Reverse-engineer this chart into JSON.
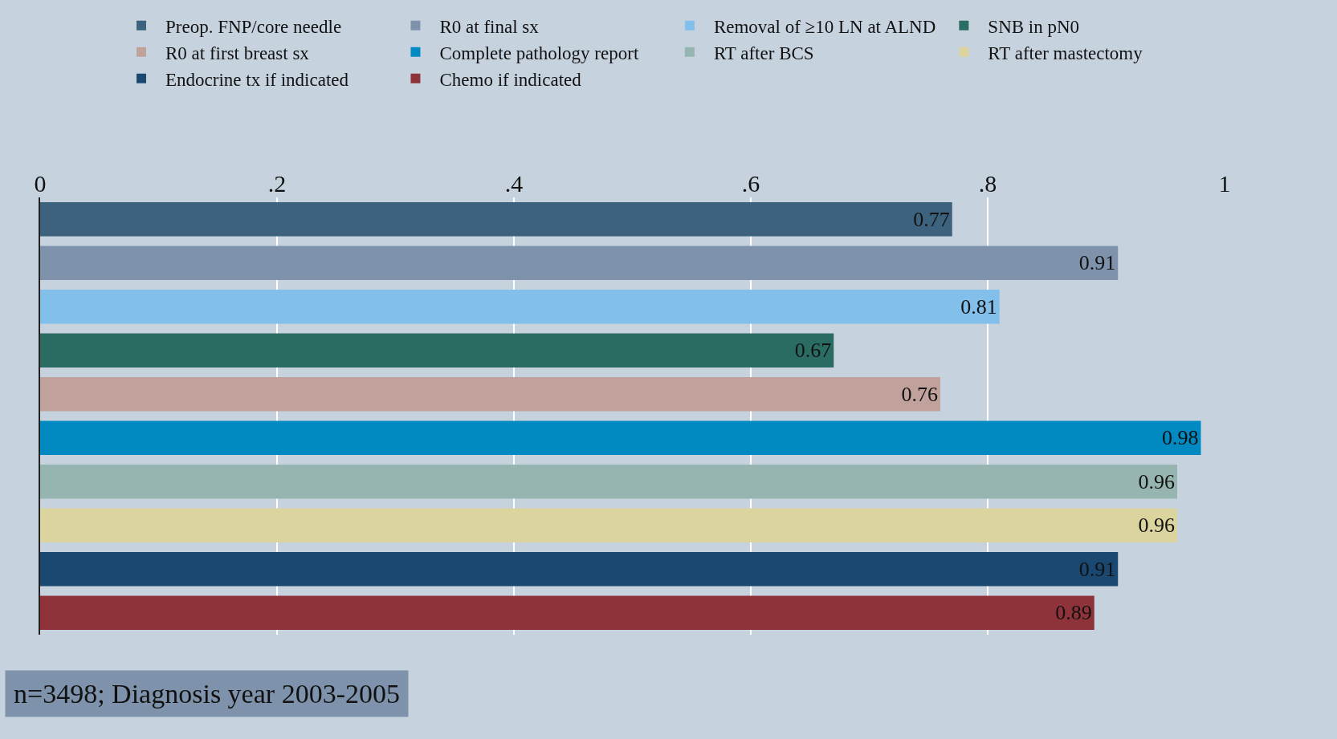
{
  "chart_data": {
    "type": "bar",
    "orientation": "horizontal",
    "categories": [
      null,
      null,
      null,
      null,
      null,
      null,
      null,
      null,
      null,
      null
    ],
    "series": [
      {
        "name": "Preop. FNP/core needle",
        "color": "#3d627e",
        "values": [
          0.77,
          null,
          null,
          null,
          null,
          null,
          null,
          null,
          null,
          null
        ]
      },
      {
        "name": "R0 at final sx",
        "color": "#7e93ab",
        "values": [
          null,
          0.91,
          null,
          null,
          null,
          null,
          null,
          null,
          null,
          null
        ]
      },
      {
        "name": "Removal of ≥10 LN at ALND",
        "color": "#82bfea",
        "values": [
          null,
          null,
          0.81,
          null,
          null,
          null,
          null,
          null,
          null,
          null
        ]
      },
      {
        "name": "SNB in pN0",
        "color": "#2a6b62",
        "values": [
          null,
          null,
          null,
          0.67,
          null,
          null,
          null,
          null,
          null,
          null
        ]
      },
      {
        "name": "R0 at first breast sx",
        "color": "#c1a19b",
        "values": [
          null,
          null,
          null,
          null,
          0.76,
          null,
          null,
          null,
          null,
          null
        ]
      },
      {
        "name": "Complete pathology report",
        "color": "#0189c1",
        "values": [
          null,
          null,
          null,
          null,
          null,
          0.98,
          null,
          null,
          null,
          null
        ]
      },
      {
        "name": "RT after BCS",
        "color": "#97b5b0",
        "values": [
          null,
          null,
          null,
          null,
          null,
          null,
          0.96,
          null,
          null,
          null
        ]
      },
      {
        "name": "RT after mastectomy",
        "color": "#dbd49f",
        "values": [
          null,
          null,
          null,
          null,
          null,
          null,
          null,
          0.96,
          null,
          null
        ]
      },
      {
        "name": "Endocrine tx if indicated",
        "color": "#1b4870",
        "values": [
          null,
          null,
          null,
          null,
          null,
          null,
          null,
          null,
          0.91,
          null
        ]
      },
      {
        "name": "Chemo if indicated",
        "color": "#8f333a",
        "values": [
          null,
          null,
          null,
          null,
          null,
          null,
          null,
          null,
          null,
          0.89
        ]
      }
    ],
    "xlim": [
      0,
      1
    ],
    "xticks": [
      0,
      {
        "value": 0.2,
        "label": ".2"
      },
      {
        "value": 0.4,
        "label": ".4"
      },
      {
        "value": 0.6,
        "label": ".6"
      },
      {
        "value": 0.8,
        "label": ".8"
      },
      1
    ],
    "grid": "x",
    "legend": "top",
    "tick_labels": "x",
    "data_labels": true,
    "annotations": [
      "n=3498; Diagnosis year 2003-2005"
    ]
  }
}
